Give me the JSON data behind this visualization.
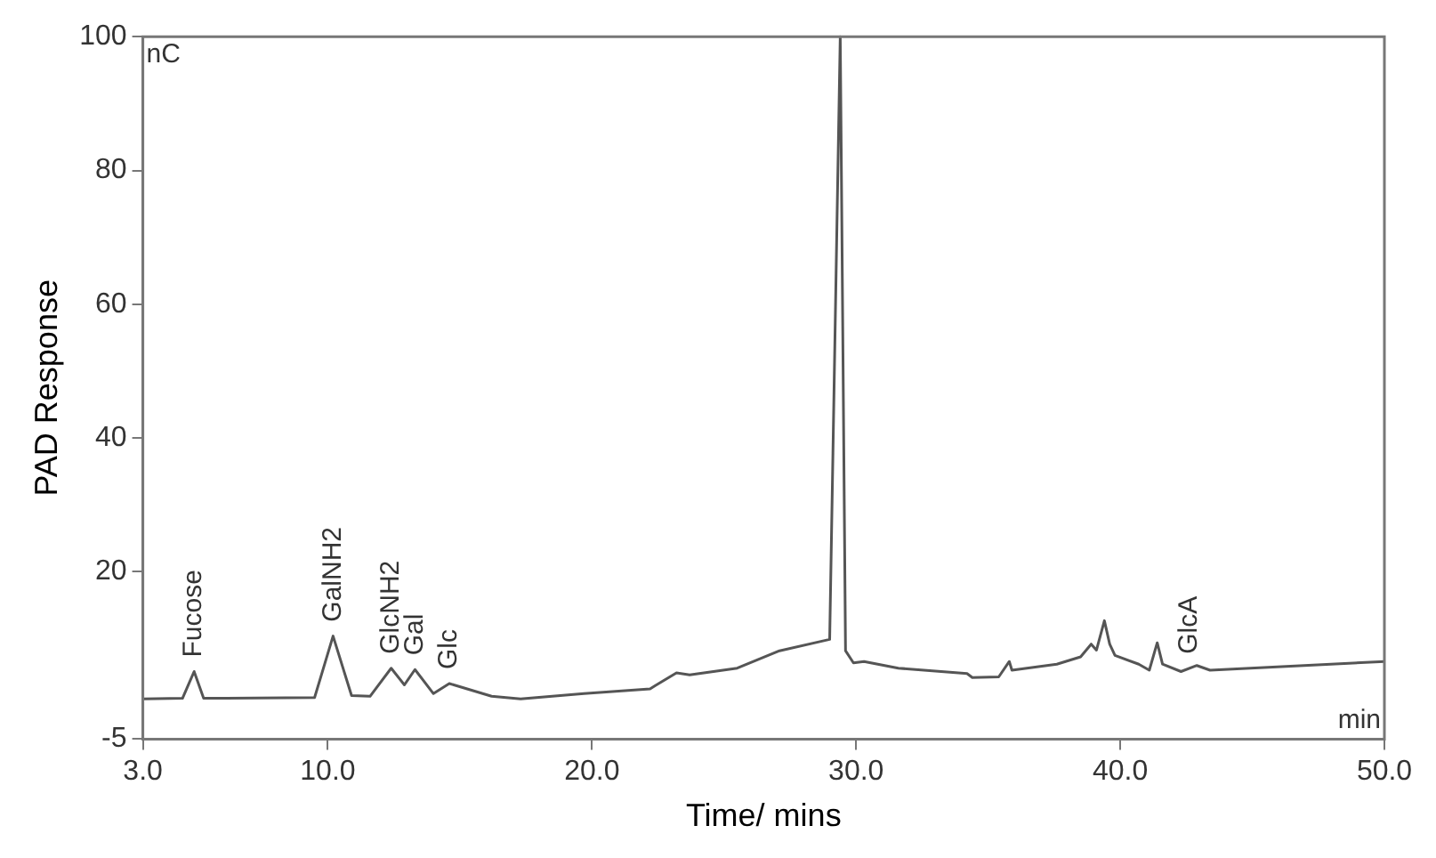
{
  "chart_data": {
    "type": "line",
    "xlabel": "Time/ mins",
    "ylabel": "PAD Response",
    "x": [
      3,
      4.5,
      4.94,
      5.3,
      9.5,
      10.2,
      10.9,
      11.6,
      12.4,
      12.9,
      13.3,
      14.0,
      14.6,
      16.2,
      17.3,
      19.7,
      22.2,
      22.4,
      23.2,
      23.7,
      25.5,
      27.1,
      29.0,
      29.4,
      29.6,
      29.9,
      30.3,
      31.6,
      34.2,
      34.4,
      35.4,
      35.8,
      35.9,
      37.6,
      38.5,
      38.9,
      39.1,
      39.4,
      39.6,
      39.8,
      40.7,
      41.1,
      41.4,
      41.6,
      42.3,
      42.9,
      43.4,
      50
    ],
    "series": [
      {
        "color": "#555555",
        "values": [
          1.0,
          1.1,
          5.1,
          1.1,
          1.2,
          10.4,
          1.5,
          1.4,
          5.6,
          3.1,
          5.4,
          1.8,
          3.3,
          1.4,
          1.0,
          1.8,
          2.5,
          3.0,
          4.9,
          4.6,
          5.6,
          8.2,
          9.9,
          100,
          8.2,
          6.4,
          6.6,
          5.6,
          4.8,
          4.2,
          4.3,
          6.6,
          5.3,
          6.2,
          7.3,
          9.2,
          8.3,
          12.7,
          9.2,
          7.5,
          6.2,
          5.3,
          9.4,
          6.2,
          5.1,
          6.0,
          5.3,
          6.6
        ]
      }
    ],
    "xlim": [
      3,
      50
    ],
    "xticks": [
      {
        "value": 3,
        "label": "3.0"
      },
      {
        "value": 10,
        "label": "10.0"
      },
      {
        "value": 20,
        "label": "20.0"
      },
      {
        "value": 30,
        "label": "30.0"
      },
      {
        "value": 40,
        "label": "40.0"
      },
      {
        "value": 50,
        "label": "50.0"
      }
    ],
    "ylim": [
      -5,
      100
    ],
    "yticks": [
      -5,
      20,
      40,
      60,
      80,
      100
    ],
    "annotations": [
      "nC",
      "min",
      {
        "text": "Fucose",
        "x": 4.94,
        "y": 5.1
      },
      {
        "text": "GalNH2",
        "x": 10.2,
        "y": 10.4
      },
      {
        "text": "GlcNH2",
        "x": 12.4,
        "y": 5.6
      },
      {
        "text": "Gal",
        "x": 13.3,
        "y": 5.4
      },
      {
        "text": "Glc",
        "x": 14.6,
        "y": 3.3
      },
      {
        "text": "GlcA",
        "x": 42.6,
        "y": 5.6
      }
    ],
    "grid": false,
    "legend": false,
    "marker": "none",
    "line_style": "solid"
  }
}
